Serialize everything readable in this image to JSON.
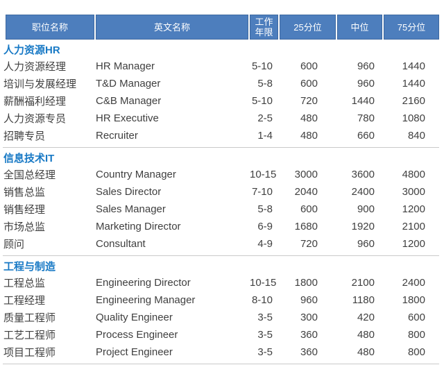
{
  "colors": {
    "header_bg": "#4d7ebd",
    "header_text": "#ffffff",
    "section_title": "#1879c5",
    "body_text": "#3f3f3f",
    "divider": "#c9c9c9"
  },
  "table": {
    "columns": [
      {
        "label": "职位名称"
      },
      {
        "label": "英文名称"
      },
      {
        "label": "工作年限"
      },
      {
        "label": "25分位"
      },
      {
        "label": "中位"
      },
      {
        "label": "75分位"
      }
    ],
    "sections": [
      {
        "title": "人力资源HR",
        "rows": [
          [
            "人力资源经理",
            "HR Manager",
            "5-10",
            "600",
            "960",
            "1440"
          ],
          [
            "培训与发展经理",
            "T&D Manager",
            "5-8",
            "600",
            "960",
            "1440"
          ],
          [
            "薪酬福利经理",
            "C&B Manager",
            "5-10",
            "720",
            "1440",
            "2160"
          ],
          [
            "人力资源专员",
            "HR Executive",
            "2-5",
            "480",
            "780",
            "1080"
          ],
          [
            "招聘专员",
            "Recruiter",
            "1-4",
            "480",
            "660",
            "840"
          ]
        ]
      },
      {
        "title": "信息技术IT",
        "rows": [
          [
            "全国总经理",
            "Country Manager",
            "10-15",
            "3000",
            "3600",
            "4800"
          ],
          [
            "销售总监",
            "Sales Director",
            "7-10",
            "2040",
            "2400",
            "3000"
          ],
          [
            "销售经理",
            "Sales Manager",
            "5-8",
            "600",
            "900",
            "1200"
          ],
          [
            "市场总监",
            "Marketing Director",
            "6-9",
            "1680",
            "1920",
            "2100"
          ],
          [
            "顾问",
            "Consultant",
            "4-9",
            "720",
            "960",
            "1200"
          ]
        ]
      },
      {
        "title": "工程与制造",
        "rows": [
          [
            "工程总监",
            "Engineering Director",
            "10-15",
            "1800",
            "2100",
            "2400"
          ],
          [
            "工程经理",
            "Engineering Manager",
            "8-10",
            "960",
            "1180",
            "1800"
          ],
          [
            "质量工程师",
            "Quality Engineer",
            "3-5",
            "300",
            "420",
            "600"
          ],
          [
            "工艺工程师",
            "Process Engineer",
            "3-5",
            "360",
            "480",
            "800"
          ],
          [
            "项目工程师",
            "Project Engineer",
            "3-5",
            "360",
            "480",
            "800"
          ]
        ]
      }
    ]
  }
}
